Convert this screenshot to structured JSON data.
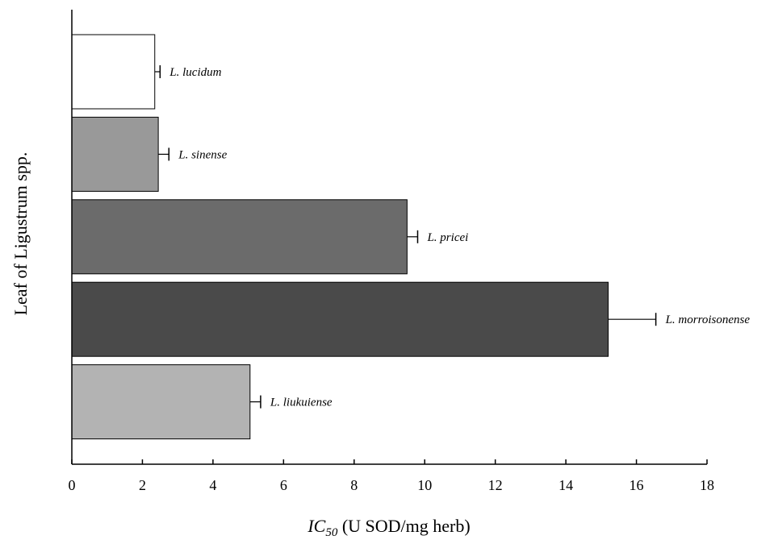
{
  "chart_data": {
    "type": "bar",
    "orientation": "horizontal",
    "categories": [
      "L. lucidum",
      "L. sinense",
      "L. pricei",
      "L. morroisonense",
      "L. liukuiense"
    ],
    "values": [
      2.35,
      2.45,
      9.5,
      15.2,
      5.05
    ],
    "errors": [
      0.15,
      0.3,
      0.3,
      1.35,
      0.3
    ],
    "bar_colors": [
      "#ffffff",
      "#999999",
      "#6b6b6b",
      "#4a4a4a",
      "#b3b3b3"
    ],
    "xlim": [
      0,
      18
    ],
    "xticks": [
      "0",
      "2",
      "4",
      "6",
      "8",
      "10",
      "12",
      "14",
      "16",
      "18"
    ],
    "xlabel": {
      "main": "IC",
      "subscript": "50",
      "rest": " (U SOD/mg herb)"
    },
    "ylabel": "Leaf of Ligustrum spp.",
    "grid": false,
    "legend": "none"
  }
}
